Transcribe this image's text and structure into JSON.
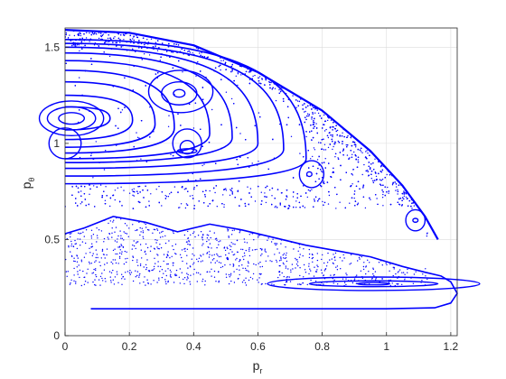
{
  "chart_data": {
    "type": "scatter",
    "title": "",
    "xlabel": {
      "main": "p",
      "sub": "r"
    },
    "ylabel": {
      "main": "p",
      "sub": "θ"
    },
    "xlim": [
      0,
      1.22
    ],
    "ylim": [
      0,
      1.6
    ],
    "xticks": [
      "0",
      "0.2",
      "0.4",
      "0.6",
      "0.8",
      "1",
      "1.2"
    ],
    "yticks": [
      "0",
      "0.5",
      "1",
      "1.5"
    ],
    "grid": true,
    "color": "#0000ff",
    "series": [
      {
        "kind": "outer-boundary",
        "points": [
          [
            0.0,
            1.59
          ],
          [
            0.2,
            1.575
          ],
          [
            0.4,
            1.51
          ],
          [
            0.6,
            1.37
          ],
          [
            0.8,
            1.17
          ],
          [
            0.95,
            0.96
          ],
          [
            1.05,
            0.78
          ],
          [
            1.12,
            0.62
          ],
          [
            1.16,
            0.5
          ]
        ]
      },
      {
        "kind": "wavy-curve",
        "points": [
          [
            0.0,
            0.53
          ],
          [
            0.06,
            0.56
          ],
          [
            0.15,
            0.62
          ],
          [
            0.25,
            0.59
          ],
          [
            0.35,
            0.54
          ],
          [
            0.45,
            0.58
          ],
          [
            0.55,
            0.55
          ],
          [
            0.65,
            0.51
          ],
          [
            0.75,
            0.47
          ],
          [
            0.85,
            0.44
          ],
          [
            0.95,
            0.41
          ],
          [
            1.05,
            0.36
          ],
          [
            1.12,
            0.33
          ],
          [
            1.17,
            0.31
          ],
          [
            1.2,
            0.28
          ],
          [
            1.22,
            0.22
          ],
          [
            1.2,
            0.17
          ],
          [
            1.15,
            0.145
          ],
          [
            1.0,
            0.14
          ],
          [
            0.7,
            0.14
          ],
          [
            0.4,
            0.14
          ],
          [
            0.08,
            0.14
          ]
        ]
      },
      {
        "kind": "island",
        "center": [
          0.96,
          0.27
        ],
        "rx": 0.33,
        "ry": 0.035
      },
      {
        "kind": "island",
        "center": [
          0.96,
          0.27
        ],
        "rx": 0.2,
        "ry": 0.015
      },
      {
        "kind": "island",
        "center": [
          0.96,
          0.27
        ],
        "rx": 0.05,
        "ry": 0.006
      },
      {
        "kind": "island",
        "center": [
          0.767,
          0.84
        ],
        "rx": 0.038,
        "ry": 0.07
      },
      {
        "kind": "island",
        "center": [
          0.76,
          0.84
        ],
        "rx": 0.008,
        "ry": 0.012
      },
      {
        "kind": "island",
        "center": [
          1.09,
          0.6
        ],
        "rx": 0.03,
        "ry": 0.055
      },
      {
        "kind": "island",
        "center": [
          1.09,
          0.6
        ],
        "rx": 0.008,
        "ry": 0.01
      },
      {
        "kind": "island",
        "center": [
          0.38,
          1.0
        ],
        "rx": 0.045,
        "ry": 0.075
      },
      {
        "kind": "island",
        "center": [
          0.38,
          0.98
        ],
        "rx": 0.022,
        "ry": 0.035
      },
      {
        "kind": "island",
        "center": [
          0.38,
          0.96
        ],
        "rx": 0.03,
        "ry": 0.012
      },
      {
        "kind": "island",
        "center": [
          0.36,
          1.27
        ],
        "rx": 0.1,
        "ry": 0.11
      },
      {
        "kind": "island",
        "center": [
          0.355,
          1.26
        ],
        "rx": 0.055,
        "ry": 0.06
      },
      {
        "kind": "island",
        "center": [
          0.355,
          1.26
        ],
        "rx": 0.018,
        "ry": 0.02
      },
      {
        "kind": "island",
        "center": [
          0.02,
          1.13
        ],
        "rx": 0.04,
        "ry": 0.03
      },
      {
        "kind": "island",
        "center": [
          0.02,
          1.13
        ],
        "rx": 0.075,
        "ry": 0.06
      },
      {
        "kind": "island",
        "center": [
          0.02,
          1.13
        ],
        "rx": 0.1,
        "ry": 0.09
      },
      {
        "kind": "island",
        "center": [
          0.0,
          1.0
        ],
        "rx": 0.05,
        "ry": 0.08
      }
    ],
    "bands": [
      {
        "kind": "nested-loop",
        "left": 0.0,
        "right": 0.14,
        "top": 1.19,
        "bottom": 1.07,
        "tip": 1.13
      },
      {
        "kind": "nested-loop",
        "left": 0.0,
        "right": 0.21,
        "top": 1.25,
        "bottom": 1.02,
        "tip": 1.12
      },
      {
        "kind": "nested-loop",
        "left": 0.0,
        "right": 0.28,
        "top": 1.32,
        "bottom": 0.98,
        "tip": 1.1
      },
      {
        "kind": "nested-loop",
        "left": 0.0,
        "right": 0.34,
        "top": 1.38,
        "bottom": 0.95,
        "tip": 1.08
      },
      {
        "kind": "nested-loop",
        "left": 0.0,
        "right": 0.45,
        "top": 1.43,
        "bottom": 0.92,
        "tip": 1.05
      },
      {
        "kind": "nested-loop",
        "left": 0.0,
        "right": 0.52,
        "top": 1.47,
        "bottom": 0.9,
        "tip": 1.03
      },
      {
        "kind": "nested-loop",
        "left": 0.0,
        "right": 0.6,
        "top": 1.5,
        "bottom": 0.87,
        "tip": 1.0
      },
      {
        "kind": "nested-loop",
        "left": 0.0,
        "right": 0.68,
        "top": 1.52,
        "bottom": 0.83,
        "tip": 0.97
      },
      {
        "kind": "nested-loop",
        "left": 0.0,
        "right": 0.75,
        "top": 1.54,
        "bottom": 0.79,
        "tip": 0.92
      }
    ],
    "scatter_regions": [
      {
        "kind": "chaotic-sea-upper",
        "xrange": [
          0.0,
          1.15
        ],
        "yrange": [
          0.66,
          1.6
        ],
        "count": 2600
      },
      {
        "kind": "chaotic-sea-lower",
        "xrange": [
          0.0,
          1.15
        ],
        "yrange": [
          0.26,
          0.62
        ],
        "count": 900
      }
    ]
  }
}
